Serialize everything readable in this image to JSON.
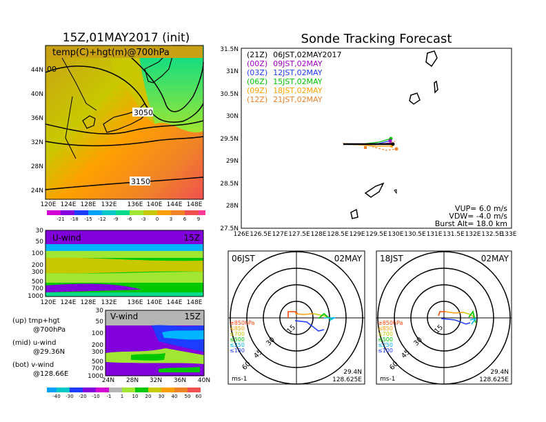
{
  "left_title": "15Z,01MAY2017 (init)",
  "map_label": "temp(C)+hgt(m)@700hPa",
  "contour_labels": [
    "00",
    "3050",
    "3150"
  ],
  "map_lat_ticks": [
    "44N",
    "40N",
    "36N",
    "32N",
    "28N",
    "24N"
  ],
  "map_lon_ticks": [
    "120E",
    "124E",
    "128E",
    "132E",
    "136E",
    "140E",
    "144E",
    "148E"
  ],
  "temp_colorbar": [
    "-21",
    "-18",
    "-15",
    "-12",
    "-9",
    "-6",
    "-3",
    "0",
    "3",
    "6",
    "9"
  ],
  "uwind": {
    "label": "U-wind",
    "time": "15Z",
    "p_ticks": [
      "30",
      "50",
      "100",
      "200",
      "300",
      "500",
      "700",
      "1000"
    ],
    "x_ticks": [
      "120E",
      "124E",
      "128E",
      "132E",
      "136E",
      "140E",
      "144E",
      "148E"
    ]
  },
  "vwind": {
    "label": "V-wind",
    "time": "15Z",
    "p_ticks": [
      "30",
      "50",
      "100",
      "200",
      "300",
      "500",
      "700",
      "1000"
    ],
    "x_ticks": [
      "24N",
      "28N",
      "32N",
      "36N",
      "40N"
    ]
  },
  "legend_notes": [
    {
      "a": "(up) tmp+hgt",
      "b": "@700hPa"
    },
    {
      "a": "(mid) u-wind",
      "b": "@29.36N"
    },
    {
      "a": "(bot) v-wind",
      "b": "@128.66E"
    }
  ],
  "wind_colorbar": [
    "-40",
    "-30",
    "-20",
    "-10",
    "-1",
    "1",
    "10",
    "20",
    "30",
    "40",
    "50",
    "60"
  ],
  "track": {
    "title": "Sonde Tracking Forecast",
    "y_ticks": [
      "31.5N",
      "31N",
      "30.5N",
      "30N",
      "29.5N",
      "29N",
      "28.5N",
      "28N",
      "27.5N"
    ],
    "x_ticks": [
      "126E",
      "126.5E",
      "127E",
      "127.5E",
      "128E",
      "128.5E",
      "129E",
      "129.5E",
      "130E",
      "130.5E",
      "131E",
      "131.5E",
      "132E",
      "132.5E",
      "133E"
    ],
    "legend": [
      {
        "init": "(21Z)",
        "valid": "06JST,02MAY2017",
        "color": "#000000"
      },
      {
        "init": "(00Z)",
        "valid": "09JST,02MAY",
        "color": "#a000c0"
      },
      {
        "init": "(03Z)",
        "valid": "12JST,02MAY",
        "color": "#1e3cff"
      },
      {
        "init": "(06Z)",
        "valid": "15JST,02MAY",
        "color": "#00c800"
      },
      {
        "init": "(09Z)",
        "valid": "18JST,02MAY",
        "color": "#ffa000"
      },
      {
        "init": "(12Z)",
        "valid": "21JST,02MAY",
        "color": "#f08228"
      }
    ],
    "vup": "VUP= 6.0 m/s",
    "vdw": "VDW= -4.0 m/s",
    "burst": "Burst Alt= 18.0 km"
  },
  "hodo_left": {
    "time": "06JST",
    "date": "02MAY",
    "lat": "29.4N",
    "lon": "128.625E",
    "unit": "ms-1",
    "rings": [
      "15",
      "30",
      "45",
      "60"
    ]
  },
  "hodo_right": {
    "time": "18JST",
    "date": "02MAY",
    "lat": "29.4N",
    "lon": "128.625E",
    "unit": "ms-1",
    "rings": [
      "15",
      "30",
      "45",
      "60"
    ]
  },
  "hodo_levels": [
    {
      "label": "≥850hPa",
      "color": "#ff4000"
    },
    {
      "label": "≤850",
      "color": "#ffa000"
    },
    {
      "label": "≤700",
      "color": "#c8c800"
    },
    {
      "label": "≤500",
      "color": "#00c800"
    },
    {
      "label": "≤250",
      "color": "#00b4ff"
    },
    {
      "label": "≤100",
      "color": "#1e3cff"
    }
  ]
}
